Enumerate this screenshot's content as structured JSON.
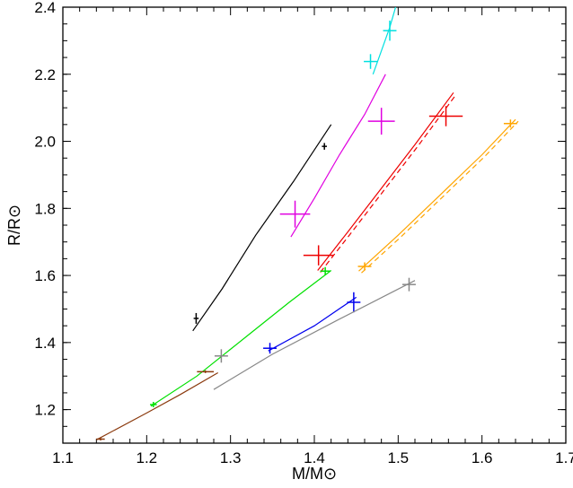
{
  "chart_data": {
    "type": "scatter",
    "xlabel": "M/M⊙",
    "ylabel": "R/R⊙",
    "xlim": [
      1.1,
      1.7
    ],
    "ylim": [
      1.1,
      2.4
    ],
    "xticks": [
      "1.1",
      "1.2",
      "1.3",
      "1.4",
      "1.5",
      "1.6",
      "1.7"
    ],
    "yticks": [
      "1.2",
      "1.4",
      "1.6",
      "1.8",
      "2.0",
      "2.2",
      "2.4"
    ],
    "grid": false,
    "series": [
      {
        "color": "#000000",
        "curve": [
          [
            1.255,
            1.435
          ],
          [
            1.29,
            1.56
          ],
          [
            1.33,
            1.72
          ],
          [
            1.375,
            1.88
          ],
          [
            1.42,
            2.05
          ]
        ],
        "points": [
          {
            "x": 1.259,
            "y": 1.472,
            "ex": 0.003,
            "ey": 0.016
          },
          {
            "x": 1.412,
            "y": 1.985,
            "ex": 0.003,
            "ey": 0.01
          }
        ]
      },
      {
        "color": "#e000e0",
        "curve": [
          [
            1.372,
            1.715
          ],
          [
            1.4,
            1.83
          ],
          [
            1.43,
            1.96
          ],
          [
            1.46,
            2.08
          ],
          [
            1.485,
            2.2
          ]
        ],
        "points": [
          {
            "x": 1.377,
            "y": 1.783,
            "ex": 0.018,
            "ey": 0.04
          },
          {
            "x": 1.48,
            "y": 2.06,
            "ex": 0.016,
            "ey": 0.04
          }
        ]
      },
      {
        "color": "#00e0e0",
        "curve": [
          [
            1.47,
            2.2
          ],
          [
            1.48,
            2.27
          ],
          [
            1.49,
            2.34
          ],
          [
            1.497,
            2.4
          ]
        ],
        "points": [
          {
            "x": 1.467,
            "y": 2.238,
            "ex": 0.008,
            "ey": 0.022
          },
          {
            "x": 1.49,
            "y": 2.33,
            "ex": 0.008,
            "ey": 0.03
          }
        ]
      },
      {
        "color": "#ee0000",
        "dashed": true,
        "curve": [
          [
            1.404,
            1.615
          ],
          [
            1.44,
            1.73
          ],
          [
            1.48,
            1.86
          ],
          [
            1.52,
            1.99
          ],
          [
            1.566,
            2.145
          ]
        ],
        "points": [
          {
            "x": 1.405,
            "y": 1.66,
            "ex": 0.018,
            "ey": 0.03
          },
          {
            "x": 1.557,
            "y": 2.075,
            "ex": 0.02,
            "ey": 0.03
          }
        ]
      },
      {
        "color": "#ffa500",
        "dashed": true,
        "curve": [
          [
            1.453,
            1.613
          ],
          [
            1.5,
            1.72
          ],
          [
            1.55,
            1.84
          ],
          [
            1.6,
            1.96
          ],
          [
            1.64,
            2.065
          ]
        ],
        "points": [
          {
            "x": 1.46,
            "y": 1.627,
            "ex": 0.008,
            "ey": 0.012
          },
          {
            "x": 1.634,
            "y": 2.053,
            "ex": 0.008,
            "ey": 0.012
          }
        ]
      },
      {
        "color": "#00e000",
        "curve": [
          [
            1.205,
            1.21
          ],
          [
            1.26,
            1.3
          ],
          [
            1.32,
            1.42
          ],
          [
            1.37,
            1.52
          ],
          [
            1.42,
            1.615
          ]
        ],
        "points": [
          {
            "x": 1.208,
            "y": 1.215,
            "ex": 0.004,
            "ey": 0.008
          },
          {
            "x": 1.413,
            "y": 1.613,
            "ex": 0.006,
            "ey": 0.012
          }
        ]
      },
      {
        "color": "#0000ee",
        "curve": [
          [
            1.345,
            1.375
          ],
          [
            1.4,
            1.45
          ],
          [
            1.45,
            1.535
          ]
        ],
        "points": [
          {
            "x": 1.347,
            "y": 1.383,
            "ex": 0.008,
            "ey": 0.016
          },
          {
            "x": 1.447,
            "y": 1.52,
            "ex": 0.008,
            "ey": 0.03
          }
        ]
      },
      {
        "color": "#888888",
        "curve": [
          [
            1.28,
            1.26
          ],
          [
            1.35,
            1.365
          ],
          [
            1.43,
            1.47
          ],
          [
            1.52,
            1.585
          ]
        ],
        "points": [
          {
            "x": 1.289,
            "y": 1.36,
            "ex": 0.008,
            "ey": 0.02
          },
          {
            "x": 1.513,
            "y": 1.573,
            "ex": 0.008,
            "ey": 0.02
          }
        ]
      },
      {
        "color": "#8b3a0e",
        "curve": [
          [
            1.14,
            1.11
          ],
          [
            1.2,
            1.19
          ],
          [
            1.24,
            1.245
          ],
          [
            1.285,
            1.31
          ]
        ],
        "points": [
          {
            "x": 1.145,
            "y": 1.112,
            "ex": 0.005,
            "ey": 0.004
          },
          {
            "x": 1.27,
            "y": 1.313,
            "ex": 0.01,
            "ey": 0.004
          }
        ]
      }
    ]
  }
}
